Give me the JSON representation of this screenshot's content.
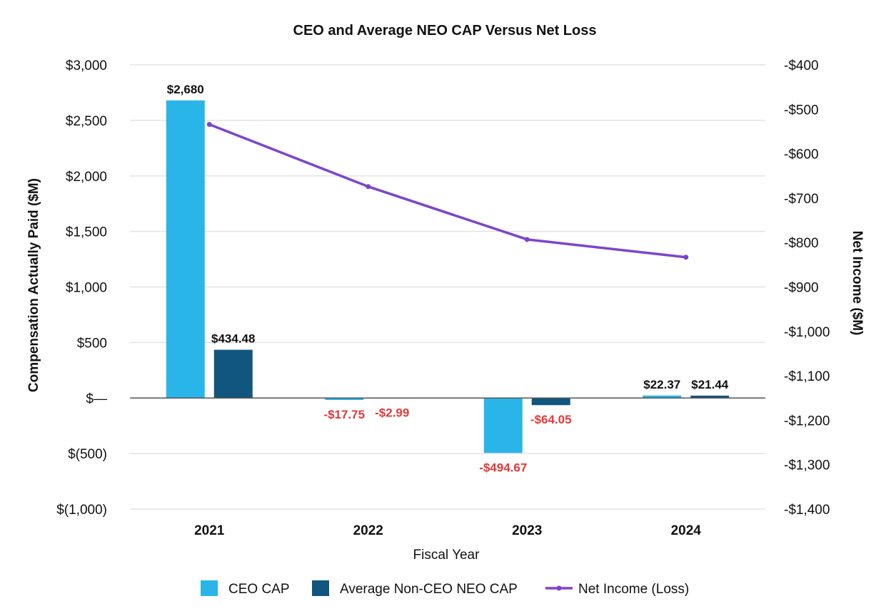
{
  "chart_data": {
    "type": "bar",
    "title": "CEO and Average NEO CAP Versus Net Loss",
    "xlabel": "Fiscal Year",
    "ylabel": "Compensation Actually Paid ($M)",
    "y2label": "Net Income ($M)",
    "categories": [
      "2021",
      "2022",
      "2023",
      "2024"
    ],
    "ylim": [
      -1000,
      3000
    ],
    "y2lim": [
      -1400,
      -400
    ],
    "yticks": [
      3000,
      2500,
      2000,
      1500,
      1000,
      500,
      0,
      -500,
      -1000
    ],
    "ytick_labels": [
      "$3,000",
      "$2,500",
      "$2,000",
      "$1,500",
      "$1,000",
      "$500",
      "$—",
      "$(500)",
      "$(1,000)"
    ],
    "y2ticks": [
      -400,
      -500,
      -600,
      -700,
      -800,
      -900,
      -1000,
      -1100,
      -1200,
      -1300,
      -1400
    ],
    "y2tick_labels": [
      "-$400",
      "-$500",
      "-$600",
      "-$700",
      "-$800",
      "-$900",
      "-$1,000",
      "-$1,100",
      "-$1,200",
      "-$1,300",
      "-$1,400"
    ],
    "series": [
      {
        "name": "CEO CAP",
        "kind": "bar",
        "axis": "left",
        "color": "#29b5e8",
        "values": [
          2680,
          -17.75,
          -494.67,
          22.37
        ],
        "labels": [
          "$2,680",
          "-$17.75",
          "-$494.67",
          "$22.37"
        ]
      },
      {
        "name": "Average Non-CEO NEO CAP",
        "kind": "bar",
        "axis": "left",
        "color": "#11567f",
        "values": [
          434.48,
          -2.99,
          -64.05,
          21.44
        ],
        "labels": [
          "$434.48",
          "-$2.99",
          "-$64.05",
          "$21.44"
        ]
      },
      {
        "name": "Net Income (Loss)",
        "kind": "line",
        "axis": "right",
        "color": "#7d44cf",
        "values": [
          -534,
          -674,
          -793,
          -833
        ]
      }
    ],
    "grid": true,
    "legend": "bottom-center",
    "positive_label_color": "#111111",
    "negative_label_color": "#e03b3b",
    "axis_color": "#555555",
    "grid_color": "#e3e3e3"
  }
}
